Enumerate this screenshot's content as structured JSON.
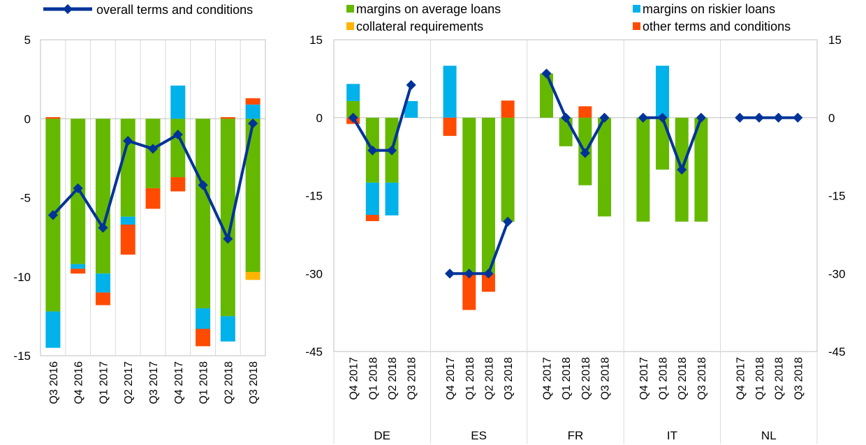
{
  "colors": {
    "overall": "#003399",
    "margins_average": "#65B800",
    "margins_riskier": "#00B1EA",
    "collateral": "#FFB400",
    "other": "#FF4B00",
    "grid": "#d9d9d9",
    "axis": "#bfbfbf"
  },
  "legend": {
    "overall": "overall terms and conditions",
    "margins_average": "margins on average loans",
    "margins_riskier": "margins on riskier loans",
    "collateral": "collateral requirements",
    "other": "other terms and conditions"
  },
  "chart_data": [
    {
      "type": "bar",
      "stacked": true,
      "categories": [
        "Q3 2016",
        "Q4 2016",
        "Q1 2017",
        "Q2 2017",
        "Q3 2017",
        "Q4 2017",
        "Q1 2018",
        "Q2 2018",
        "Q3 2018"
      ],
      "ylim": [
        -15,
        5
      ],
      "yticks": [
        "5",
        "0",
        "-5",
        "-10",
        "-15"
      ],
      "series": [
        {
          "name": "margins on average loans",
          "values": [
            -12.2,
            -9.2,
            -9.8,
            -6.2,
            -4.4,
            -3.7,
            -12.0,
            -12.5,
            -9.7
          ]
        },
        {
          "name": "margins on riskier loans",
          "values": [
            -2.3,
            -0.3,
            -1.2,
            -0.5,
            0,
            2.1,
            -1.3,
            -1.6,
            0.9
          ]
        },
        {
          "name": "collateral requirements",
          "values": [
            0,
            0,
            0,
            0,
            0,
            0,
            0,
            0,
            -0.5
          ]
        },
        {
          "name": "other terms and conditions",
          "values": [
            0.1,
            -0.3,
            -0.8,
            -1.9,
            -1.3,
            -0.9,
            -1.1,
            0.1,
            0.4
          ]
        }
      ],
      "line": {
        "name": "overall terms and conditions",
        "values": [
          -6.1,
          -4.4,
          -6.9,
          -1.4,
          -1.9,
          -1.0,
          -4.2,
          -7.6,
          -0.3
        ]
      }
    },
    {
      "type": "bar",
      "stacked": true,
      "groups": [
        "DE",
        "ES",
        "FR",
        "IT",
        "NL"
      ],
      "categories": [
        "Q4 2017",
        "Q1 2018",
        "Q2 2018",
        "Q3 2018"
      ],
      "ylim": [
        -45,
        15
      ],
      "yticks": [
        "15",
        "0",
        "-15",
        "-30",
        "-45"
      ],
      "series": [
        {
          "name": "margins on average loans",
          "values": [
            [
              3.2,
              -12.5,
              -12.5,
              0
            ],
            [
              0,
              -30,
              -30,
              -20
            ],
            [
              8.5,
              -5.5,
              -13,
              -19
            ],
            [
              -20,
              -10,
              -20,
              -20
            ],
            [
              0,
              0,
              0,
              0
            ]
          ]
        },
        {
          "name": "margins on riskier loans",
          "values": [
            [
              3.3,
              -6.2,
              -6.3,
              3.2
            ],
            [
              10,
              0,
              0,
              0
            ],
            [
              0,
              0,
              0,
              0
            ],
            [
              0,
              10,
              0,
              0
            ],
            [
              0,
              0,
              0,
              0
            ]
          ]
        },
        {
          "name": "collateral requirements",
          "values": [
            [
              0,
              0,
              0,
              0
            ],
            [
              0,
              0,
              0,
              0
            ],
            [
              0,
              0,
              0,
              0
            ],
            [
              0,
              0,
              0,
              0
            ],
            [
              0,
              0,
              0,
              0
            ]
          ]
        },
        {
          "name": "other terms and conditions",
          "values": [
            [
              -1.2,
              -1.2,
              0,
              0
            ],
            [
              -3.5,
              -7,
              -3.5,
              3.3
            ],
            [
              0,
              0,
              2.2,
              0
            ],
            [
              0,
              0,
              0,
              0
            ],
            [
              0,
              0,
              0,
              0
            ]
          ]
        }
      ],
      "line": {
        "name": "overall terms and conditions",
        "values": [
          [
            0,
            -6.3,
            -6.3,
            6.3
          ],
          [
            -30,
            -30,
            -30,
            -20
          ],
          [
            8.5,
            0,
            -6.8,
            0
          ],
          [
            0,
            0,
            -10,
            0
          ],
          [
            0,
            0,
            0,
            0
          ]
        ]
      }
    }
  ]
}
